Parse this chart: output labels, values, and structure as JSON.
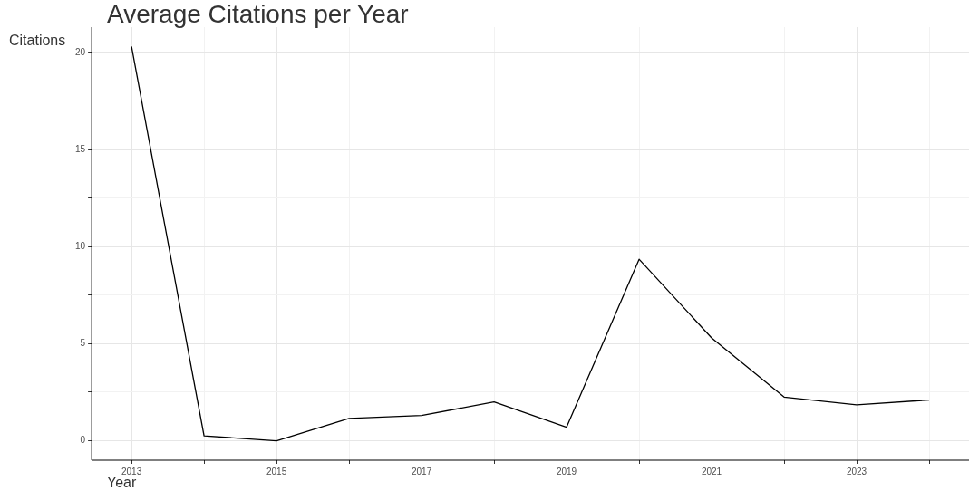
{
  "chart_data": {
    "type": "line",
    "title": "Average Citations per Year",
    "xlabel": "Year",
    "ylabel": "Citations",
    "x": [
      2013,
      2014,
      2015,
      2016,
      2017,
      2018,
      2019,
      2020,
      2021,
      2022,
      2023,
      2024
    ],
    "series": [
      {
        "color": "#000000",
        "values": [
          20.3,
          0.25,
          0,
          1.15,
          1.3,
          2.0,
          0.7,
          9.35,
          5.3,
          2.25,
          1.85,
          2.1
        ]
      }
    ],
    "xlim": [
      2012.45,
      2024.55
    ],
    "xticks": [
      2013,
      {
        "value": 2014,
        "label": null
      },
      2015,
      {
        "value": 2016,
        "label": null
      },
      2017,
      {
        "value": 2018,
        "label": null
      },
      2019,
      {
        "value": 2020,
        "label": null
      },
      2021,
      {
        "value": 2022,
        "label": null
      },
      2023,
      {
        "value": 2024,
        "label": null
      }
    ],
    "ylim": [
      -1,
      21.3
    ],
    "yticks": [
      0,
      {
        "value": 2.5,
        "label": null
      },
      5,
      {
        "value": 7.5,
        "label": null
      },
      10,
      {
        "value": 12.5,
        "label": null
      },
      15,
      {
        "value": 17.5,
        "label": null
      },
      20
    ],
    "grid": true,
    "legend": false,
    "marker": "none",
    "line_style": "solid"
  }
}
